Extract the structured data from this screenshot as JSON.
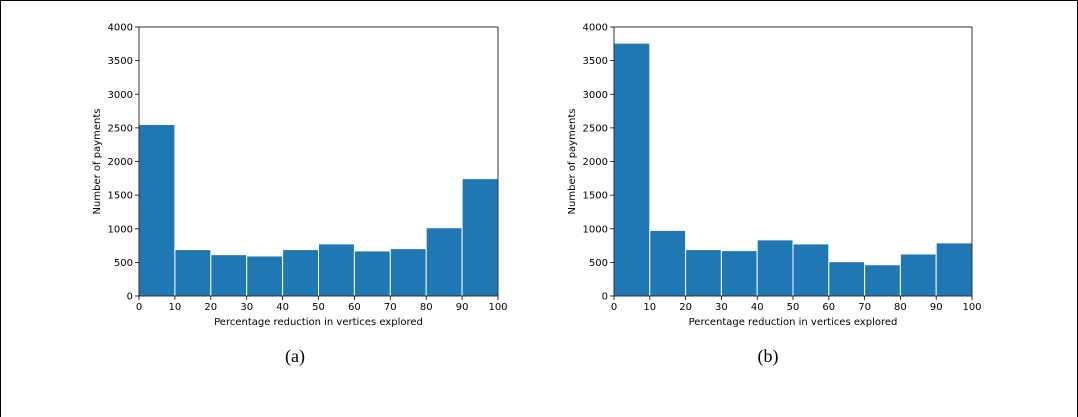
{
  "chart_data": [
    {
      "type": "bar",
      "caption": "(a)",
      "xlabel": "Percentage reduction in vertices explored",
      "ylabel": "Number of payments",
      "xlim": [
        0,
        100
      ],
      "ylim": [
        0,
        4000
      ],
      "xticks": [
        0,
        10,
        20,
        30,
        40,
        50,
        60,
        70,
        80,
        90,
        100
      ],
      "yticks": [
        0,
        500,
        1000,
        1500,
        2000,
        2500,
        3000,
        3500,
        4000
      ],
      "bin_edges": [
        0,
        10,
        20,
        30,
        40,
        50,
        60,
        70,
        80,
        90,
        100
      ],
      "values": [
        2550,
        690,
        615,
        595,
        690,
        775,
        670,
        705,
        1015,
        1745
      ],
      "color": "#1f77b4",
      "grid": false
    },
    {
      "type": "bar",
      "caption": "(b)",
      "xlabel": "Percentage reduction in vertices explored",
      "ylabel": "Number of payments",
      "xlim": [
        0,
        100
      ],
      "ylim": [
        0,
        4000
      ],
      "xticks": [
        0,
        10,
        20,
        30,
        40,
        50,
        60,
        70,
        80,
        90,
        100
      ],
      "yticks": [
        0,
        500,
        1000,
        1500,
        2000,
        2500,
        3000,
        3500,
        4000
      ],
      "bin_edges": [
        0,
        10,
        20,
        30,
        40,
        50,
        60,
        70,
        80,
        90,
        100
      ],
      "values": [
        3760,
        975,
        690,
        675,
        835,
        775,
        510,
        465,
        625,
        790
      ],
      "color": "#1f77b4",
      "grid": false
    }
  ]
}
